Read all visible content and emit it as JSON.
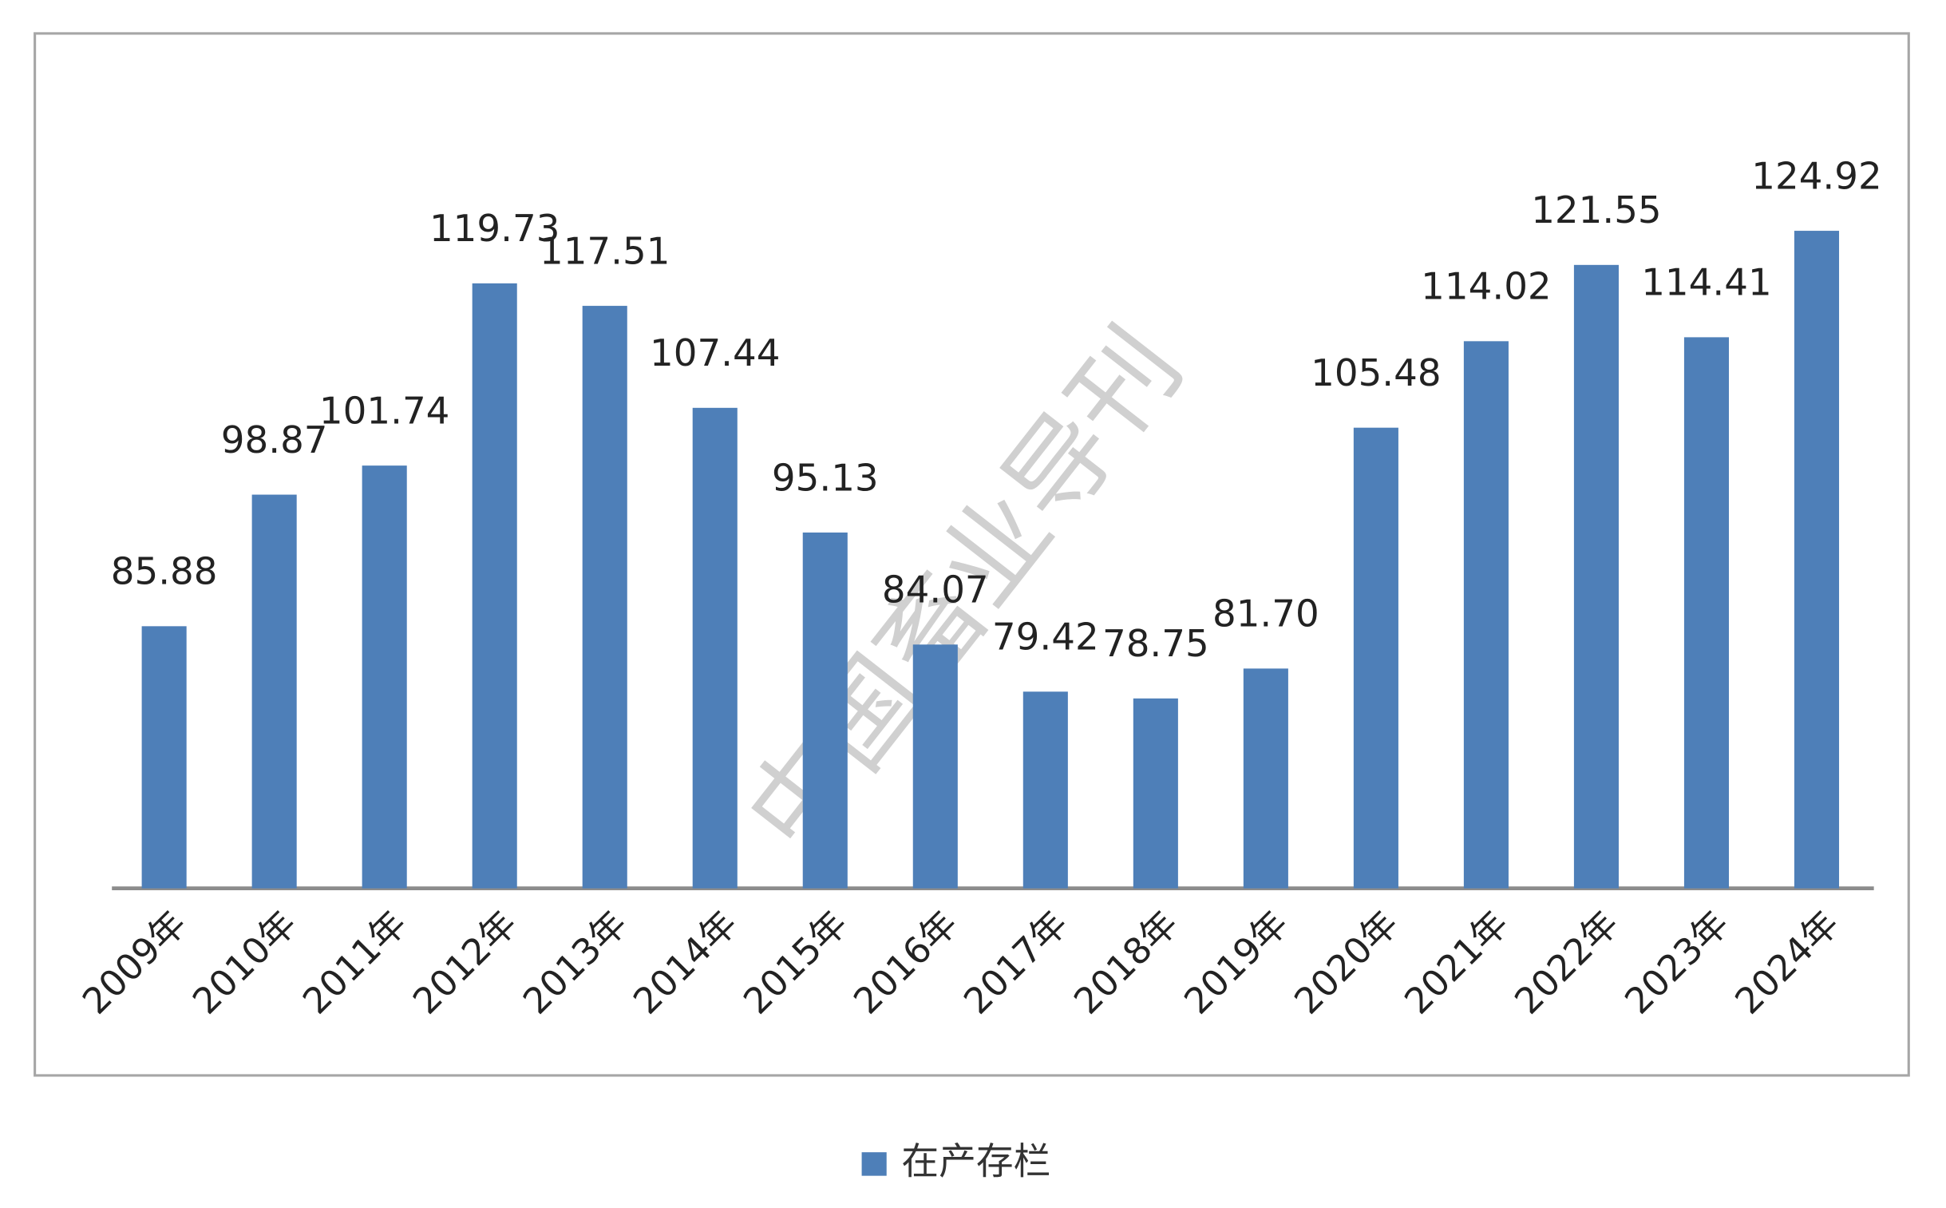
{
  "chart_data": {
    "type": "bar",
    "categories": [
      "2009年",
      "2010年",
      "2011年",
      "2012年",
      "2013年",
      "2014年",
      "2015年",
      "2016年",
      "2017年",
      "2018年",
      "2019年",
      "2020年",
      "2021年",
      "2022年",
      "2023年",
      "2024年"
    ],
    "series": [
      {
        "name": "在产存栏",
        "color": "#4e7fb8",
        "values": [
          85.88,
          98.87,
          101.74,
          119.73,
          117.51,
          107.44,
          95.13,
          84.07,
          79.42,
          78.75,
          81.7,
          105.48,
          114.02,
          121.55,
          114.41,
          124.92
        ],
        "value_labels": [
          "85.88",
          "98.87",
          "101.74",
          "119.73",
          "117.51",
          "107.44",
          "95.13",
          "84.07",
          "79.42",
          "78.75",
          "81.70",
          "105.48",
          "114.02",
          "121.55",
          "114.41",
          "124.92"
        ]
      }
    ],
    "ylim": [
      60,
      140
    ],
    "watermark": "中国畜业导刊"
  }
}
